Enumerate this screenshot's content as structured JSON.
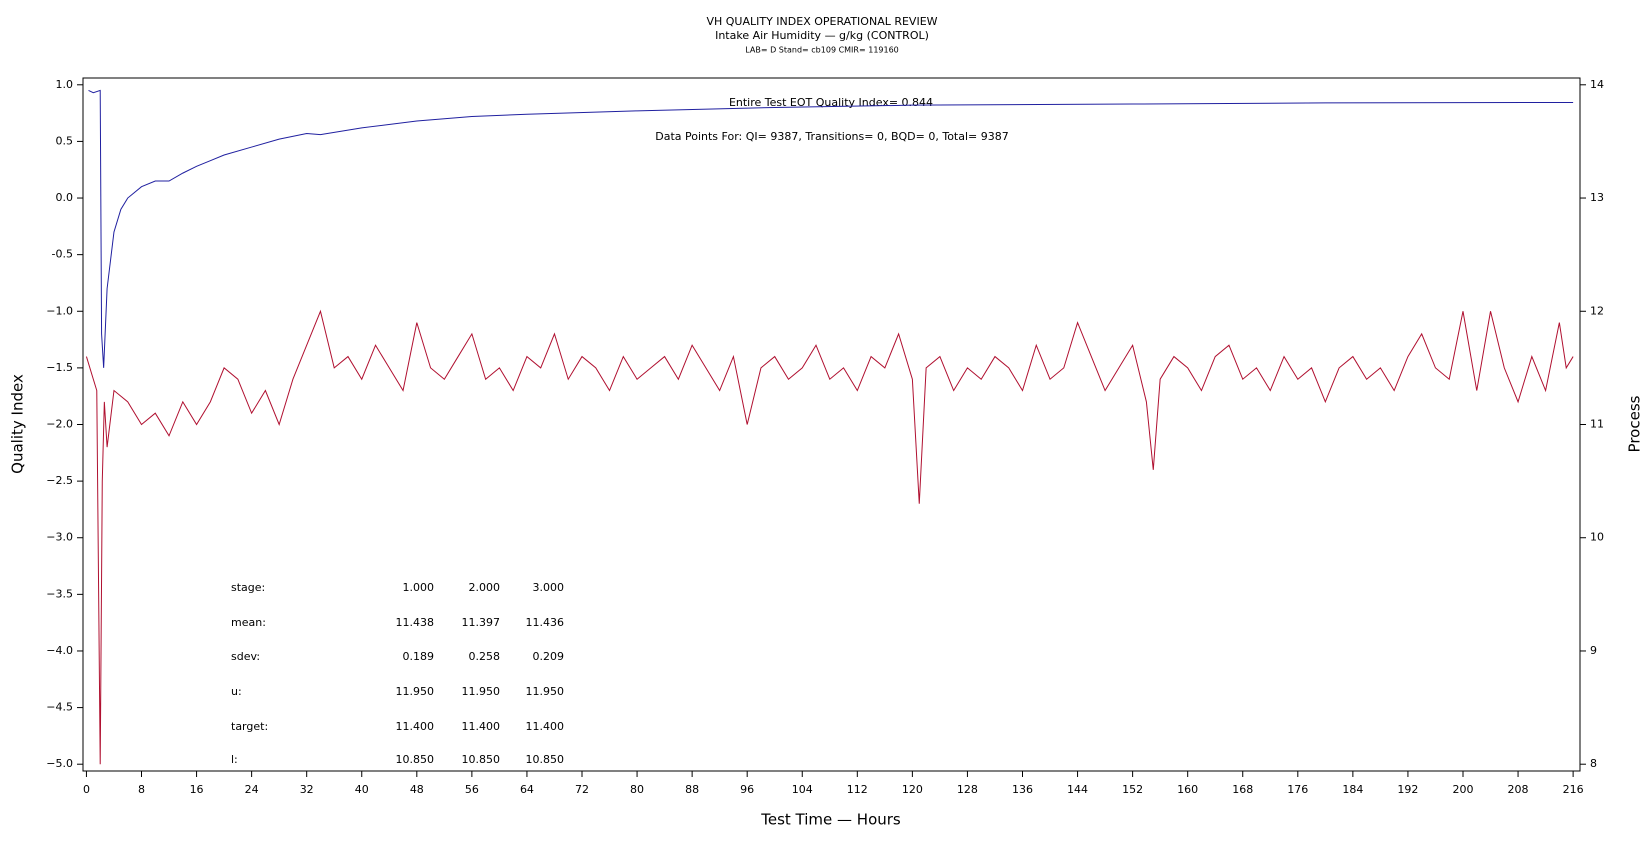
{
  "chart_data": {
    "type": "line",
    "title": "VH QUALITY INDEX OPERATIONAL REVIEW",
    "subtitle": "Intake Air Humidity — g/kg (CONTROL)",
    "caption": "LAB= D Stand= cb109 CMIR= 119160",
    "xlabel": "Test Time — Hours",
    "ylabel": "Quality Index",
    "y2label": "Process",
    "annotations": [
      "Entire Test EOT Quality Index=   0.844",
      "Data Points For: QI=  9387, Transitions=     0, BQD=     0, Total=  9387"
    ],
    "xlim": [
      -0.5,
      217
    ],
    "xticks": [
      0,
      8,
      16,
      24,
      32,
      40,
      48,
      56,
      64,
      72,
      80,
      88,
      96,
      104,
      112,
      120,
      128,
      136,
      144,
      152,
      160,
      168,
      176,
      184,
      192,
      200,
      208,
      216
    ],
    "ylim": [
      -5.06,
      1.06
    ],
    "yticks": [
      {
        "value": 1,
        "label": "1.0"
      },
      0.5,
      {
        "value": 0,
        "label": "0.0"
      },
      -0.5,
      {
        "value": -1,
        "label": "−1.0"
      },
      {
        "value": -1.5,
        "label": "−1.5"
      },
      {
        "value": -2,
        "label": "−2.0"
      },
      {
        "value": -2.5,
        "label": "−2.5"
      },
      {
        "value": -3,
        "label": "−3.0"
      },
      {
        "value": -3.5,
        "label": "−3.5"
      },
      {
        "value": -4,
        "label": "−4.0"
      },
      {
        "value": -4.5,
        "label": "−4.5"
      },
      {
        "value": -5,
        "label": "−5.0"
      }
    ],
    "y2lim": [
      7.94,
      14.06
    ],
    "y2ticks": [
      8,
      9,
      10,
      11,
      12,
      13,
      14
    ],
    "series": [
      {
        "color": "#2020a0",
        "x": [
          0.3,
          1,
          2,
          2.2,
          2.5,
          3,
          4,
          5,
          6,
          8,
          10,
          12,
          14,
          16,
          18,
          20,
          24,
          28,
          32,
          34,
          40,
          48,
          56,
          64,
          80,
          100,
          120,
          152,
          180,
          216
        ],
        "values": [
          0.95,
          0.93,
          0.95,
          -1.2,
          -1.5,
          -0.8,
          -0.3,
          -0.1,
          0.0,
          0.1,
          0.15,
          0.15,
          0.22,
          0.28,
          0.33,
          0.38,
          0.45,
          0.52,
          0.57,
          0.56,
          0.62,
          0.68,
          0.72,
          0.74,
          0.77,
          0.8,
          0.82,
          0.83,
          0.84,
          0.844
        ]
      },
      {
        "color": "#b01030",
        "axis": "y2",
        "x": [
          0,
          1,
          1.5,
          2,
          2.3,
          2.6,
          3,
          4,
          6,
          8,
          10,
          12,
          14,
          16,
          18,
          20,
          22,
          24,
          26,
          28,
          30,
          32,
          34,
          36,
          38,
          40,
          42,
          44,
          46,
          48,
          50,
          52,
          54,
          56,
          58,
          60,
          62,
          64,
          66,
          68,
          70,
          72,
          74,
          76,
          78,
          80,
          82,
          84,
          86,
          88,
          90,
          92,
          94,
          96,
          98,
          100,
          102,
          104,
          106,
          108,
          110,
          112,
          114,
          116,
          118,
          120,
          121,
          122,
          124,
          126,
          128,
          130,
          132,
          134,
          136,
          138,
          140,
          142,
          144,
          146,
          148,
          150,
          152,
          154,
          155,
          156,
          158,
          160,
          162,
          164,
          166,
          168,
          170,
          172,
          174,
          176,
          178,
          180,
          182,
          184,
          186,
          188,
          190,
          192,
          194,
          196,
          198,
          200,
          202,
          204,
          206,
          208,
          210,
          212,
          214,
          215,
          216
        ],
        "values": [
          11.6,
          11.4,
          11.3,
          8.0,
          10.5,
          11.2,
          10.8,
          11.3,
          11.2,
          11.0,
          11.1,
          10.9,
          11.2,
          11.0,
          11.2,
          11.5,
          11.4,
          11.1,
          11.3,
          11.0,
          11.4,
          11.7,
          12.0,
          11.5,
          11.6,
          11.4,
          11.7,
          11.5,
          11.3,
          11.9,
          11.5,
          11.4,
          11.6,
          11.8,
          11.4,
          11.5,
          11.3,
          11.6,
          11.5,
          11.8,
          11.4,
          11.6,
          11.5,
          11.3,
          11.6,
          11.4,
          11.5,
          11.6,
          11.4,
          11.7,
          11.5,
          11.3,
          11.6,
          11.0,
          11.5,
          11.6,
          11.4,
          11.5,
          11.7,
          11.4,
          11.5,
          11.3,
          11.6,
          11.5,
          11.8,
          11.4,
          10.3,
          11.5,
          11.6,
          11.3,
          11.5,
          11.4,
          11.6,
          11.5,
          11.3,
          11.7,
          11.4,
          11.5,
          11.9,
          11.6,
          11.3,
          11.5,
          11.7,
          11.2,
          10.6,
          11.4,
          11.6,
          11.5,
          11.3,
          11.6,
          11.7,
          11.4,
          11.5,
          11.3,
          11.6,
          11.4,
          11.5,
          11.2,
          11.5,
          11.6,
          11.4,
          11.5,
          11.3,
          11.6,
          11.8,
          11.5,
          11.4,
          12.0,
          11.3,
          12.0,
          11.5,
          11.2,
          11.6,
          11.3,
          11.9,
          11.5,
          11.6
        ]
      }
    ]
  },
  "stats_table": {
    "rows": [
      {
        "label": "stage:",
        "values": [
          "1.000",
          "2.000",
          "3.000"
        ]
      },
      {
        "label": "mean:",
        "values": [
          "11.438",
          "11.397",
          "11.436"
        ]
      },
      {
        "label": "sdev:",
        "values": [
          "0.189",
          "0.258",
          "0.209"
        ]
      },
      {
        "label": "u:",
        "values": [
          "11.950",
          "11.950",
          "11.950"
        ]
      },
      {
        "label": "target:",
        "values": [
          "11.400",
          "11.400",
          "11.400"
        ]
      },
      {
        "label": "l:",
        "values": [
          "10.850",
          "10.850",
          "10.850"
        ]
      }
    ]
  }
}
